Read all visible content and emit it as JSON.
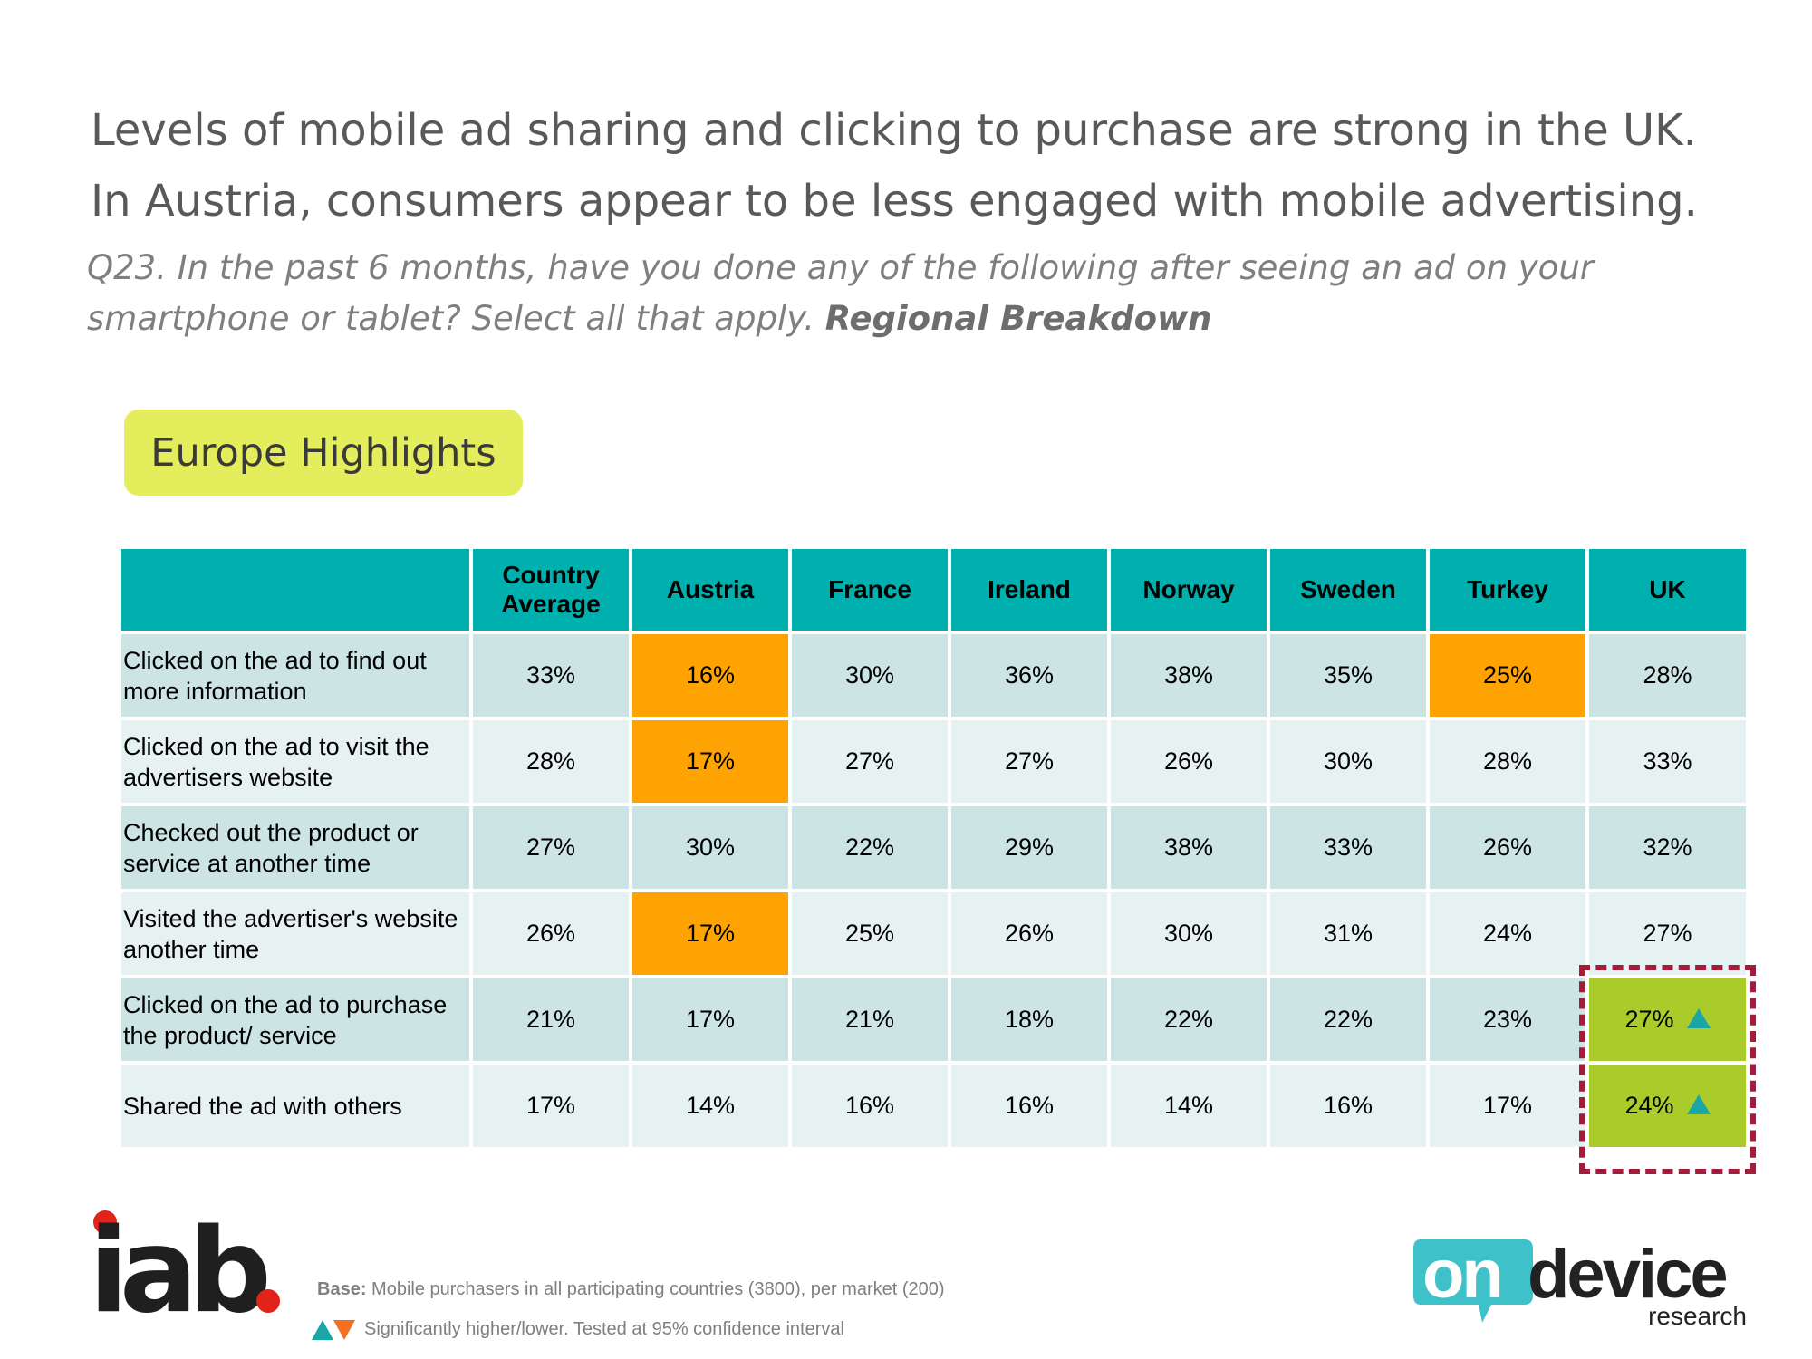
{
  "headline": "Levels of mobile ad sharing and clicking to purchase are strong in the UK. In Austria, consumers appear to be less engaged with mobile advertising.",
  "question": {
    "text": "Q23. In the past 6 months, have you done any of the following after seeing an ad on your smartphone or tablet? Select all that apply.",
    "emphasis": "Regional Breakdown"
  },
  "badge": "Europe Highlights",
  "table": {
    "columns": [
      "Country Average",
      "Austria",
      "France",
      "Ireland",
      "Norway",
      "Sweden",
      "Turkey",
      "UK"
    ],
    "rows": [
      {
        "label": "Clicked on the ad to find out more information",
        "values": [
          "33%",
          "16%",
          "30%",
          "36%",
          "38%",
          "35%",
          "25%",
          "28%"
        ]
      },
      {
        "label": "Clicked on the ad to visit the advertisers website",
        "values": [
          "28%",
          "17%",
          "27%",
          "27%",
          "26%",
          "30%",
          "28%",
          "33%"
        ]
      },
      {
        "label": "Checked out the product or service at another time",
        "values": [
          "27%",
          "30%",
          "22%",
          "29%",
          "38%",
          "33%",
          "26%",
          "32%"
        ]
      },
      {
        "label": "Visited the advertiser's website another time",
        "values": [
          "26%",
          "17%",
          "25%",
          "26%",
          "30%",
          "31%",
          "24%",
          "27%"
        ]
      },
      {
        "label": "Clicked on the ad to purchase the product/ service",
        "values": [
          "21%",
          "17%",
          "21%",
          "18%",
          "22%",
          "22%",
          "23%",
          "27%"
        ]
      },
      {
        "label": "Shared the ad with others",
        "values": [
          "17%",
          "14%",
          "16%",
          "16%",
          "14%",
          "16%",
          "17%",
          "24%"
        ]
      }
    ],
    "colors": {
      "header": "#00b0ae",
      "lower": "#ffa303",
      "higher": "#aacc2a"
    }
  },
  "footnotes": {
    "base_label": "Base:",
    "base_text": "Mobile purchasers in all participating countries (3800), per market (200)",
    "significance": "Significantly higher/lower. Tested at 95% confidence interval"
  },
  "logos": {
    "iab": "iab",
    "ondevice_on": "on",
    "ondevice_device": "device",
    "ondevice_research": "research"
  }
}
